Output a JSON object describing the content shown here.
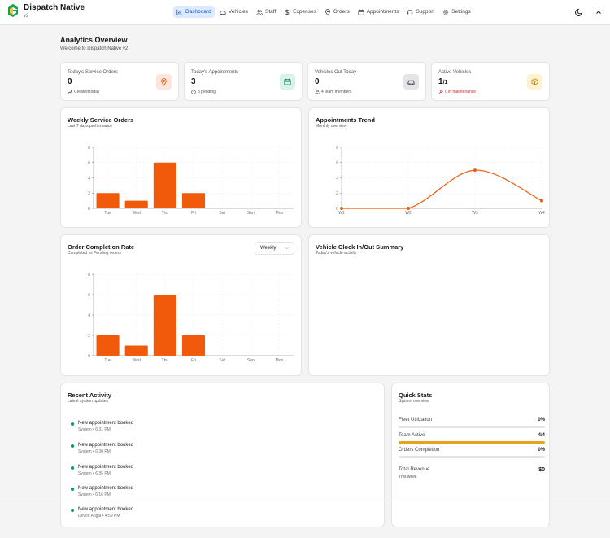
{
  "app": {
    "name": "Dispatch Native",
    "version": "v2"
  },
  "nav": [
    {
      "label": "Dashboard",
      "icon": "chart-icon",
      "active": true
    },
    {
      "label": "Vehicles",
      "icon": "car-icon"
    },
    {
      "label": "Staff",
      "icon": "users-icon"
    },
    {
      "label": "Expenses",
      "icon": "dollar-icon"
    },
    {
      "label": "Orders",
      "icon": "map-pin-icon"
    },
    {
      "label": "Appointments",
      "icon": "calendar-icon"
    },
    {
      "label": "Support",
      "icon": "headset-icon"
    },
    {
      "label": "Settings",
      "icon": "gear-icon"
    }
  ],
  "page": {
    "title": "Analytics Overview",
    "subtitle": "Welcome to Dispatch Native v2"
  },
  "stats": [
    {
      "title": "Today's Service Orders",
      "value": "0",
      "foot": "Created today",
      "icon": "map-pin-icon",
      "icon_bg": "#fde4dc",
      "icon_color": "#ea580c"
    },
    {
      "title": "Today's Appointments",
      "value": "3",
      "foot": "3 pending",
      "icon": "calendar-icon",
      "icon_bg": "#d9f2ec",
      "icon_color": "#047857"
    },
    {
      "title": "Vehicles Out Today",
      "value": "0",
      "foot": "4 team members",
      "icon": "car-icon",
      "icon_bg": "#e4e4e7",
      "icon_color": "#3f3f46"
    },
    {
      "title": "Active Vehicles",
      "value": "1",
      "value_suffix": "/1",
      "foot": "0 in maintenance",
      "icon": "box-icon",
      "icon_bg": "#fdf3d4",
      "icon_color": "#ca8a04"
    }
  ],
  "weekly": {
    "title": "Weekly Service Orders",
    "subtitle": "Last 7 days performance"
  },
  "trend": {
    "title": "Appointments Trend",
    "subtitle": "Monthly overview"
  },
  "completion": {
    "title": "Order Completion Rate",
    "subtitle": "Completed vs Pending orders",
    "select_value": "Weekly"
  },
  "clock": {
    "title": "Vehicle Clock In/Out Summary",
    "subtitle": "Today's vehicle activity"
  },
  "activity": {
    "title": "Recent Activity",
    "subtitle": "Latest system updates",
    "items": [
      {
        "title": "New appointment booked",
        "meta": "System • 6:31 PM"
      },
      {
        "title": "New appointment booked",
        "meta": "System • 6:30 PM"
      },
      {
        "title": "New appointment booked",
        "meta": "System • 6:35 PM"
      },
      {
        "title": "New appointment booked",
        "meta": "System • 6:16 PM"
      },
      {
        "title": "New appointment booked",
        "meta": "Devon Angia • 4:59 PM"
      }
    ]
  },
  "quick": {
    "title": "Quick Stats",
    "subtitle": "System overview",
    "rows": [
      {
        "label": "Fleet Utilization",
        "value": "0%",
        "fill": 0
      },
      {
        "label": "Team Active",
        "value": "4/4",
        "fill": 1
      },
      {
        "label": "Orders Completion",
        "value": "0%",
        "fill": 0
      }
    ],
    "revenue_label": "Total Revenue",
    "revenue_value": "$0",
    "revenue_note": "This week"
  },
  "colors": {
    "accent": "#f05a0a",
    "nav_active_bg": "#dbeafe",
    "progress": "#e5a41a",
    "activity_dot": "#059669"
  },
  "chart_data": [
    {
      "type": "bar",
      "title": "Weekly Service Orders",
      "categories": [
        "Tue",
        "Wed",
        "Thu",
        "Fri",
        "Sat",
        "Sun",
        "Mon"
      ],
      "values": [
        2,
        1,
        6,
        2,
        0,
        0,
        0
      ],
      "yticks": [
        0,
        2,
        4,
        6,
        8
      ],
      "ylim": [
        0,
        8
      ],
      "grid": true
    },
    {
      "type": "line",
      "title": "Appointments Trend",
      "categories": [
        "W1",
        "W2",
        "W3",
        "W4"
      ],
      "values": [
        0,
        0,
        5,
        1
      ],
      "yticks": [
        0,
        2,
        4,
        6,
        8
      ],
      "ylim": [
        0,
        8
      ],
      "grid": true
    },
    {
      "type": "bar",
      "title": "Order Completion Rate",
      "categories": [
        "Tue",
        "Wed",
        "Thu",
        "Fri",
        "Sat",
        "Sun",
        "Mon"
      ],
      "values": [
        2,
        1,
        6,
        2,
        0,
        0,
        0
      ],
      "yticks": [
        0,
        2,
        4,
        6,
        8
      ],
      "ylim": [
        0,
        8
      ],
      "grid": true
    }
  ]
}
